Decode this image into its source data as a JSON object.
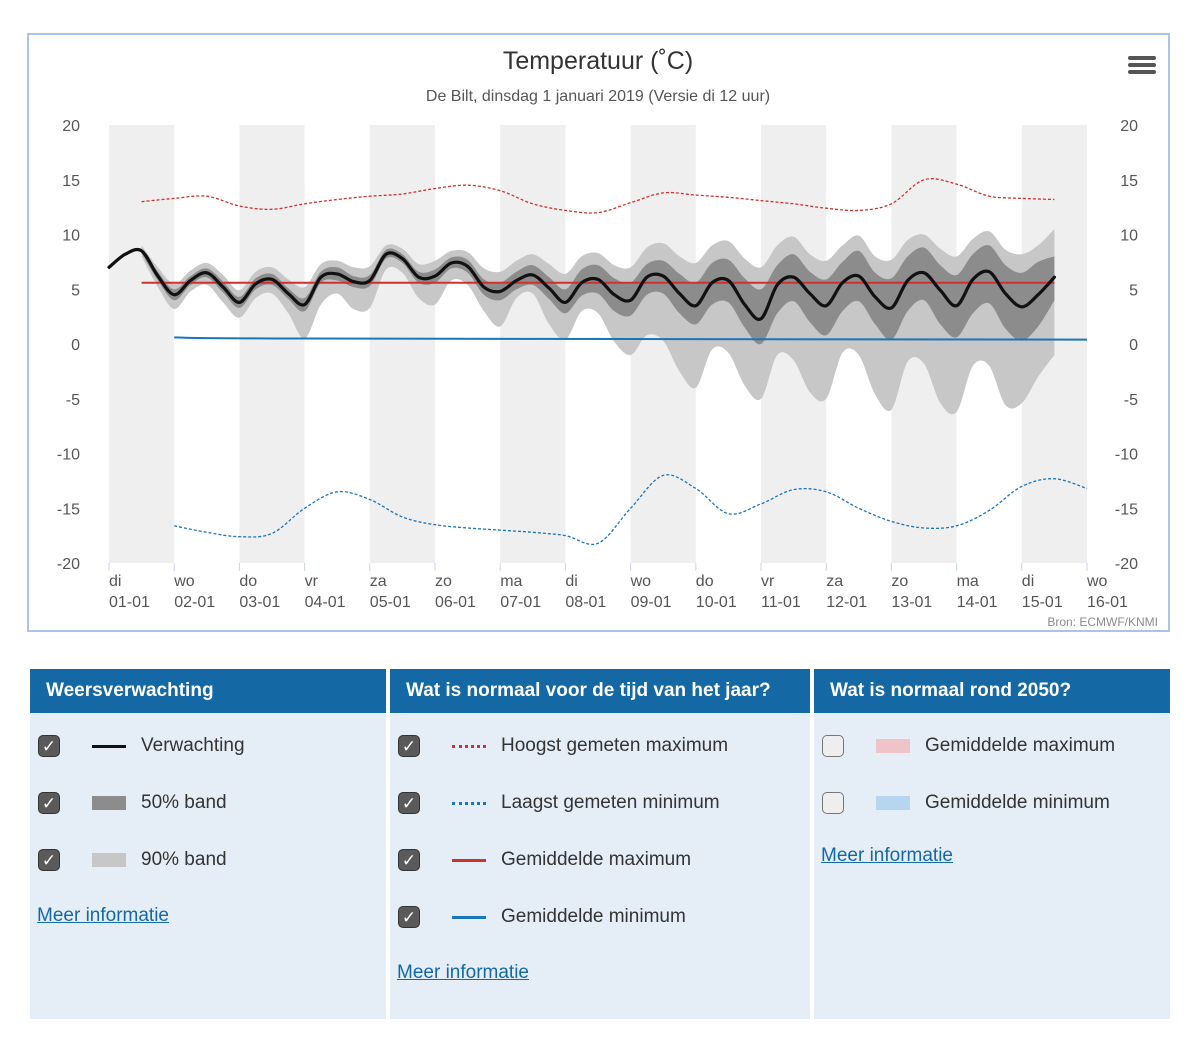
{
  "colors": {
    "header_bg": "#1468a3",
    "panel_bg": "#e5eef7",
    "stripe": "#efefef",
    "band90": "#c7c7c7",
    "band50": "#8c8c8c",
    "forecast": "#111111",
    "record_max": "#d0312d",
    "record_min": "#1b75bb",
    "avg_max": "#d0312d",
    "avg_min": "#1b75bb",
    "future_max": "#eec4c8",
    "future_min": "#b6d6ef"
  },
  "chart_data": {
    "type": "line",
    "title": "Temperatuur (˚C)",
    "subtitle": "De Bilt, dinsdag 1 januari 2019 (Versie di 12 uur)",
    "source": "Bron: ECMWF/KNMI",
    "ylim": [
      -20,
      20
    ],
    "yticks": [
      "20",
      "15",
      "10",
      "5",
      "0",
      "-5",
      "-10",
      "-15",
      "-20"
    ],
    "xlim": [
      0,
      15
    ],
    "x_ticks": [
      {
        "day": "di",
        "date": "01-01"
      },
      {
        "day": "wo",
        "date": "02-01"
      },
      {
        "day": "do",
        "date": "03-01"
      },
      {
        "day": "vr",
        "date": "04-01"
      },
      {
        "day": "za",
        "date": "05-01"
      },
      {
        "day": "zo",
        "date": "06-01"
      },
      {
        "day": "ma",
        "date": "07-01"
      },
      {
        "day": "di",
        "date": "08-01"
      },
      {
        "day": "wo",
        "date": "09-01"
      },
      {
        "day": "do",
        "date": "10-01"
      },
      {
        "day": "vr",
        "date": "11-01"
      },
      {
        "day": "za",
        "date": "12-01"
      },
      {
        "day": "zo",
        "date": "13-01"
      },
      {
        "day": "ma",
        "date": "14-01"
      },
      {
        "day": "di",
        "date": "15-01"
      },
      {
        "day": "wo",
        "date": "16-01"
      }
    ],
    "series": [
      {
        "name": "Verwachting",
        "style": "solid-black",
        "x": [
          0,
          0.25,
          0.5,
          0.75,
          1,
          1.25,
          1.5,
          1.75,
          2,
          2.25,
          2.5,
          2.75,
          3,
          3.25,
          3.5,
          3.75,
          4,
          4.25,
          4.5,
          4.75,
          5,
          5.25,
          5.5,
          5.75,
          6,
          6.25,
          6.5,
          6.75,
          7,
          7.25,
          7.5,
          7.75,
          8,
          8.25,
          8.5,
          8.75,
          9,
          9.25,
          9.5,
          9.75,
          10,
          10.25,
          10.5,
          10.75,
          11,
          11.25,
          11.5,
          11.75,
          12,
          12.25,
          12.5,
          12.75,
          13,
          13.25,
          13.5,
          13.75,
          14,
          14.25,
          14.5
        ],
        "y": [
          7,
          8.2,
          8.5,
          6.2,
          4.5,
          5.8,
          6.5,
          5.2,
          3.8,
          5.5,
          5.9,
          4.6,
          3.6,
          6.1,
          6.4,
          5.7,
          5.8,
          8.2,
          7.8,
          6.1,
          6.2,
          7.4,
          7.1,
          5.2,
          4.8,
          5.8,
          6.3,
          5.1,
          3.8,
          5.6,
          5.9,
          4.5,
          4.0,
          6.1,
          6.2,
          4.6,
          3.5,
          5.6,
          5.8,
          3.6,
          2.3,
          5.4,
          6.1,
          4.6,
          3.5,
          5.6,
          6.2,
          4.3,
          3.3,
          5.8,
          6.5,
          4.9,
          3.5,
          5.9,
          6.6,
          4.6,
          3.4,
          4.5,
          6.1
        ]
      },
      {
        "name": "50% band",
        "style": "band-dark",
        "x": [
          0.5,
          0.75,
          1,
          1.25,
          1.5,
          1.75,
          2,
          2.25,
          2.5,
          2.75,
          3,
          3.25,
          3.5,
          3.75,
          4,
          4.25,
          4.5,
          4.75,
          5,
          5.25,
          5.5,
          5.75,
          6,
          6.25,
          6.5,
          6.75,
          7,
          7.25,
          7.5,
          7.75,
          8,
          8.25,
          8.5,
          8.75,
          9,
          9.25,
          9.5,
          9.75,
          10,
          10.25,
          10.5,
          10.75,
          11,
          11.25,
          11.5,
          11.75,
          12,
          12.25,
          12.5,
          12.75,
          13,
          13.25,
          13.5,
          13.75,
          14,
          14.25,
          14.5
        ],
        "upper": [
          8.7,
          6.6,
          5.0,
          6.2,
          6.9,
          5.7,
          4.3,
          6.0,
          6.4,
          5.1,
          4.2,
          6.6,
          7.0,
          6.2,
          6.3,
          8.6,
          8.2,
          6.6,
          6.8,
          7.9,
          7.7,
          5.9,
          5.6,
          6.6,
          7.2,
          6.1,
          5.0,
          6.8,
          7.2,
          6.0,
          5.6,
          7.3,
          7.6,
          6.4,
          5.6,
          7.4,
          7.7,
          6.0,
          5.0,
          7.2,
          8.2,
          6.6,
          5.9,
          7.5,
          8.5,
          6.5,
          6.0,
          8.0,
          8.8,
          7.2,
          6.3,
          8.2,
          9.0,
          7.2,
          6.5,
          7.5,
          8.0
        ],
        "lower": [
          8.3,
          5.8,
          4.0,
          5.4,
          6.1,
          4.7,
          3.3,
          5.0,
          5.4,
          4.1,
          3.0,
          5.6,
          5.8,
          5.2,
          5.3,
          7.8,
          7.4,
          5.6,
          5.6,
          6.9,
          6.5,
          4.5,
          4.0,
          5.0,
          5.4,
          4.1,
          2.8,
          4.4,
          4.6,
          3.0,
          2.6,
          4.5,
          4.6,
          2.8,
          1.8,
          3.6,
          3.8,
          1.5,
          0.0,
          2.8,
          3.9,
          2.0,
          0.8,
          3.0,
          3.9,
          1.8,
          0.4,
          3.0,
          4.0,
          1.8,
          0.6,
          2.8,
          3.7,
          1.4,
          0.3,
          1.6,
          4.0
        ]
      },
      {
        "name": "90% band",
        "style": "band-light",
        "x": [
          0.5,
          0.75,
          1,
          1.25,
          1.5,
          1.75,
          2,
          2.25,
          2.5,
          2.75,
          3,
          3.25,
          3.5,
          3.75,
          4,
          4.25,
          4.5,
          4.75,
          5,
          5.25,
          5.5,
          5.75,
          6,
          6.25,
          6.5,
          6.75,
          7,
          7.25,
          7.5,
          7.75,
          8,
          8.25,
          8.5,
          8.75,
          9,
          9.25,
          9.5,
          9.75,
          10,
          10.25,
          10.5,
          10.75,
          11,
          11.25,
          11.5,
          11.75,
          12,
          12.25,
          12.5,
          12.75,
          13,
          13.25,
          13.5,
          13.75,
          14,
          14.25,
          14.5
        ],
        "upper": [
          9.0,
          7.0,
          5.5,
          6.7,
          7.4,
          6.3,
          4.9,
          6.6,
          7.0,
          5.9,
          5.2,
          7.3,
          7.6,
          7.0,
          7.1,
          9.0,
          8.7,
          7.3,
          7.6,
          8.5,
          8.4,
          6.9,
          6.6,
          7.6,
          8.2,
          7.3,
          6.4,
          8.0,
          8.3,
          7.2,
          7.0,
          8.8,
          9.2,
          8.0,
          7.4,
          9.0,
          9.4,
          7.8,
          7.0,
          9.0,
          9.8,
          8.2,
          7.6,
          9.0,
          9.9,
          8.0,
          7.7,
          9.5,
          10.0,
          8.7,
          8.0,
          9.6,
          10.3,
          8.6,
          8.2,
          9.0,
          10.5
        ],
        "lower": [
          8.0,
          5.2,
          3.2,
          4.8,
          5.4,
          3.8,
          2.4,
          4.2,
          4.6,
          2.8,
          0.5,
          3.6,
          4.6,
          3.2,
          3.3,
          6.8,
          6.5,
          4.2,
          3.6,
          5.8,
          5.4,
          3.0,
          1.6,
          4.2,
          4.6,
          1.8,
          0.4,
          3.0,
          2.8,
          0.2,
          -1.0,
          0.8,
          0.3,
          -2.5,
          -4.0,
          -0.5,
          -0.8,
          -3.8,
          -5.0,
          -1.0,
          -1.5,
          -4.4,
          -5.0,
          -0.8,
          -1.0,
          -4.6,
          -6.0,
          -1.6,
          -1.8,
          -5.4,
          -6.2,
          -2.0,
          -2.0,
          -5.6,
          -5.4,
          -3.0,
          -1.0
        ]
      },
      {
        "name": "Hoogst gemeten maximum",
        "style": "dashed-red",
        "x": [
          0.5,
          1,
          1.5,
          2,
          2.5,
          3,
          3.5,
          4,
          4.5,
          5,
          5.5,
          6,
          6.5,
          7,
          7.5,
          8,
          8.5,
          9,
          9.5,
          10,
          10.5,
          11,
          11.5,
          12,
          12.5,
          13,
          13.5,
          14,
          14.5
        ],
        "y": [
          13.0,
          13.3,
          13.5,
          12.6,
          12.3,
          12.8,
          13.2,
          13.5,
          13.7,
          14.2,
          14.5,
          14.0,
          12.8,
          12.2,
          12.0,
          12.9,
          13.8,
          13.6,
          13.4,
          13.1,
          12.8,
          12.4,
          12.2,
          12.8,
          15.0,
          14.6,
          13.5,
          13.3,
          13.2
        ]
      },
      {
        "name": "Laagst gemeten minimum",
        "style": "dashed-blue",
        "x": [
          1,
          1.5,
          2,
          2.5,
          3,
          3.5,
          4,
          4.5,
          5,
          5.5,
          6,
          6.5,
          7,
          7.5,
          8,
          8.5,
          9,
          9.5,
          10,
          10.5,
          11,
          11.5,
          12,
          12.5,
          13,
          13.5,
          14,
          14.5,
          15
        ],
        "y": [
          -16.6,
          -17.2,
          -17.6,
          -17.3,
          -15.0,
          -13.5,
          -14.2,
          -15.8,
          -16.5,
          -16.8,
          -17.0,
          -17.2,
          -17.5,
          -18.2,
          -15.0,
          -12.0,
          -13.2,
          -15.5,
          -14.6,
          -13.3,
          -13.5,
          -15.0,
          -16.2,
          -16.8,
          -16.6,
          -15.2,
          -13.0,
          -12.3,
          -13.2
        ]
      },
      {
        "name": "Gemiddelde maximum",
        "style": "solid-red",
        "x": [
          0.5,
          14.5
        ],
        "y": [
          5.6,
          5.6
        ]
      },
      {
        "name": "Gemiddelde minimum",
        "style": "solid-blue",
        "x": [
          1,
          3,
          15
        ],
        "y": [
          0.6,
          0.5,
          0.4
        ]
      }
    ]
  },
  "panels": [
    {
      "title": "Weersverwachting",
      "items": [
        {
          "label": "Verwachting",
          "checked": true,
          "swatch": "line",
          "color": "#111111"
        },
        {
          "label": "50% band",
          "checked": true,
          "swatch": "block",
          "color": "#8c8c8c"
        },
        {
          "label": "90% band",
          "checked": true,
          "swatch": "block",
          "color": "#c7c7c7"
        }
      ],
      "more": "Meer informatie"
    },
    {
      "title": "Wat is normaal voor de tijd van het jaar?",
      "items": [
        {
          "label": "Hoogst gemeten maximum",
          "checked": true,
          "swatch": "dotted",
          "color": "#d0312d"
        },
        {
          "label": "Laagst gemeten minimum",
          "checked": true,
          "swatch": "dotted",
          "color": "#1b75bb"
        },
        {
          "label": "Gemiddelde maximum",
          "checked": true,
          "swatch": "line",
          "color": "#d0312d"
        },
        {
          "label": "Gemiddelde minimum",
          "checked": true,
          "swatch": "line",
          "color": "#1b75bb"
        }
      ],
      "more": "Meer informatie"
    },
    {
      "title": "Wat is normaal rond 2050?",
      "items": [
        {
          "label": "Gemiddelde maximum",
          "checked": false,
          "swatch": "block",
          "color": "#eec4c8"
        },
        {
          "label": "Gemiddelde minimum",
          "checked": false,
          "swatch": "block",
          "color": "#b6d6ef"
        }
      ],
      "more": "Meer informatie"
    }
  ]
}
